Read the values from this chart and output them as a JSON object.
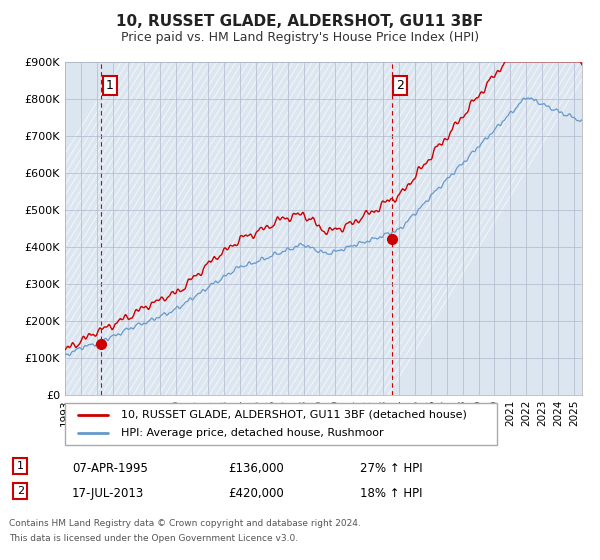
{
  "title": "10, RUSSET GLADE, ALDERSHOT, GU11 3BF",
  "subtitle": "Price paid vs. HM Land Registry's House Price Index (HPI)",
  "ylim": [
    0,
    900000
  ],
  "yticks": [
    0,
    100000,
    200000,
    300000,
    400000,
    500000,
    600000,
    700000,
    800000,
    900000
  ],
  "ytick_labels": [
    "£0",
    "£100K",
    "£200K",
    "£300K",
    "£400K",
    "£500K",
    "£600K",
    "£700K",
    "£800K",
    "£900K"
  ],
  "red_line_color": "#cc0000",
  "blue_line_color": "#6699cc",
  "vline_color": "#cc0000",
  "grid_color": "#b0b8cc",
  "plot_bg_color": "#dce6f0",
  "background_color": "#ffffff",
  "transaction1_x": 1995.27,
  "transaction1_y": 136000,
  "transaction2_x": 2013.54,
  "transaction2_y": 420000,
  "transaction1_date": "07-APR-1995",
  "transaction1_price": "£136,000",
  "transaction1_hpi": "27% ↑ HPI",
  "transaction2_date": "17-JUL-2013",
  "transaction2_price": "£420,000",
  "transaction2_hpi": "18% ↑ HPI",
  "legend_line1": "10, RUSSET GLADE, ALDERSHOT, GU11 3BF (detached house)",
  "legend_line2": "HPI: Average price, detached house, Rushmoor",
  "footnote1": "Contains HM Land Registry data © Crown copyright and database right 2024.",
  "footnote2": "This data is licensed under the Open Government Licence v3.0.",
  "xmin": 1993,
  "xmax": 2025.5
}
